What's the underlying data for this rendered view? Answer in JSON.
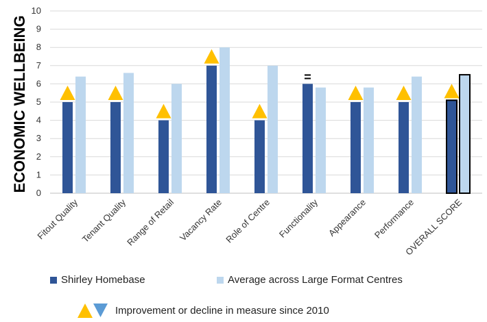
{
  "chart_data": {
    "type": "bar",
    "ylabel": "ECONOMIC WELLBEING",
    "ylim": [
      0,
      10
    ],
    "yticks": [
      0,
      1,
      2,
      3,
      4,
      5,
      6,
      7,
      8,
      9,
      10
    ],
    "grid": true,
    "categories": [
      "Fitout Quality",
      "Tenant Quality",
      "Range of Retail",
      "Vacancy Rate",
      "Role of Centre",
      "Functionality",
      "Appearance",
      "Performance",
      "OVERALL SCORE"
    ],
    "series": [
      {
        "name": "Shirley Homebase",
        "color": "#2F5597",
        "values": [
          5,
          5,
          4,
          7,
          4,
          6,
          5,
          5,
          5.1
        ]
      },
      {
        "name": "Average across Large Format Centres",
        "color": "#BDD7EE",
        "values": [
          6.4,
          6.6,
          6.0,
          8.0,
          7.0,
          5.8,
          5.8,
          6.4,
          6.5
        ]
      }
    ],
    "change_markers": [
      "up",
      "up",
      "up",
      "up",
      "up",
      "equal",
      "up",
      "up",
      "up"
    ],
    "change_marker_symbols": {
      "up": "▲",
      "down": "▼",
      "equal": "="
    },
    "marker_colors": {
      "up": "#FFC000",
      "down": "#5B9BD5",
      "equal": "#000000"
    },
    "highlighted_category": "OVERALL SCORE",
    "legend": {
      "series_entries": [
        "Shirley Homebase",
        "Average across Large Format Centres"
      ],
      "marker_note": "Improvement or decline in measure since 2010",
      "marker_note_icons": [
        "up-triangle-icon",
        "down-triangle-icon"
      ]
    }
  }
}
